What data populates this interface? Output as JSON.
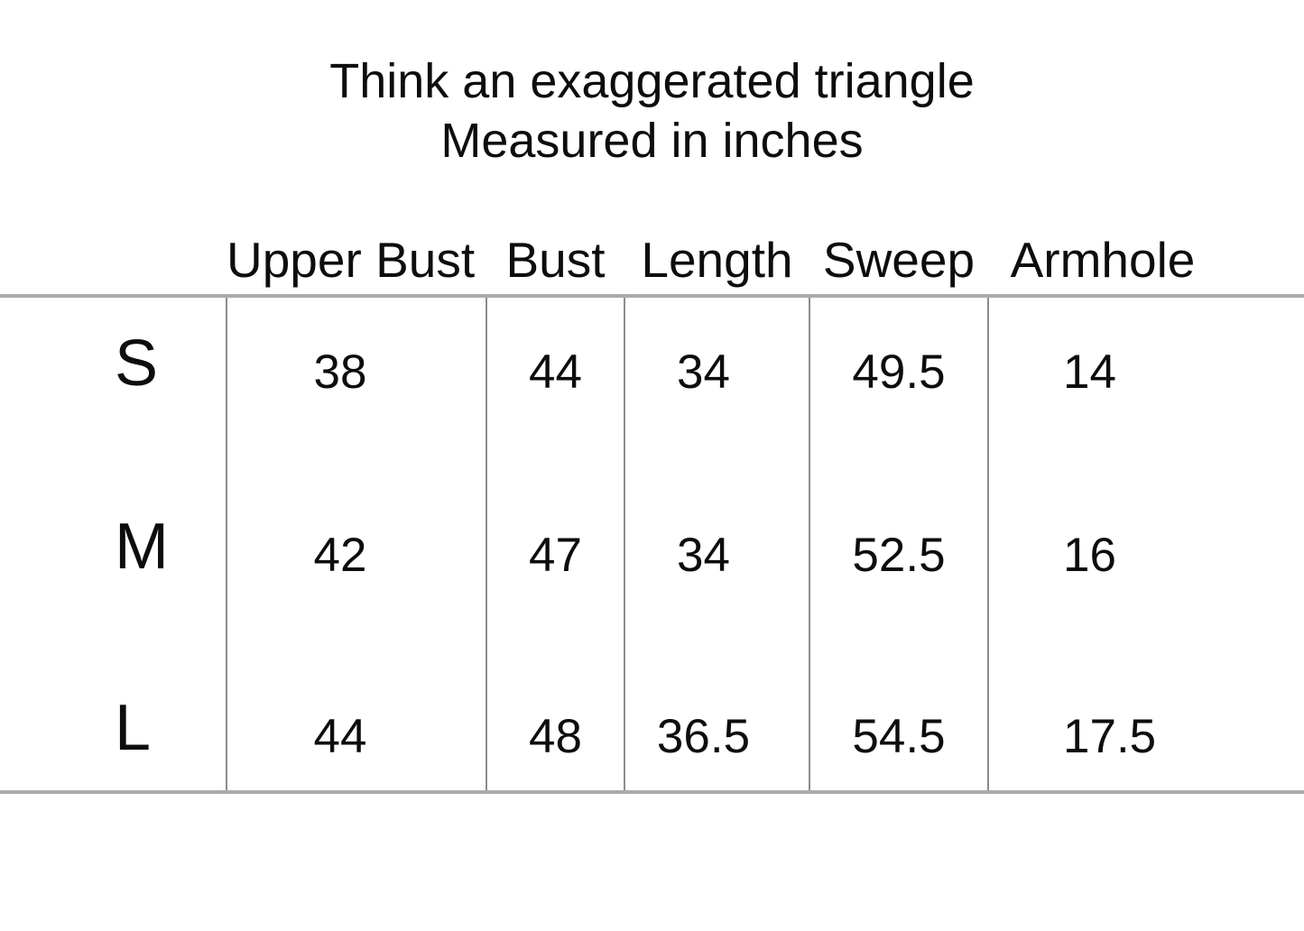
{
  "title": {
    "line1": "Think an exaggerated triangle",
    "line2": "Measured in inches"
  },
  "table": {
    "columns": [
      "",
      "Upper Bust",
      "Bust",
      "Length",
      "Sweep",
      "Armhole"
    ],
    "rows": [
      {
        "size": "S",
        "values": [
          "38",
          "44",
          "34",
          "49.5",
          "14"
        ]
      },
      {
        "size": "M",
        "values": [
          "42",
          "47",
          "34",
          "52.5",
          "16"
        ]
      },
      {
        "size": "L",
        "values": [
          "44",
          "48",
          "36.5",
          "54.5",
          "17.5"
        ]
      }
    ]
  },
  "chart_data": {
    "type": "table",
    "title": "Think an exaggerated triangle",
    "subtitle": "Measured in inches",
    "units": "inches",
    "columns": [
      "Upper Bust",
      "Bust",
      "Length",
      "Sweep",
      "Armhole"
    ],
    "rows": [
      {
        "size": "S",
        "upper_bust": 38,
        "bust": 44,
        "length": 34,
        "sweep": 49.5,
        "armhole": 14
      },
      {
        "size": "M",
        "upper_bust": 42,
        "bust": 47,
        "length": 34,
        "sweep": 52.5,
        "armhole": 16
      },
      {
        "size": "L",
        "upper_bust": 44,
        "bust": 48,
        "length": 36.5,
        "sweep": 54.5,
        "armhole": 17.5
      }
    ]
  },
  "colors": {
    "background": "#ffffff",
    "text": "#0d0d0d",
    "rule_horizontal": "#ababab",
    "rule_vertical": "#8c8c8c"
  }
}
